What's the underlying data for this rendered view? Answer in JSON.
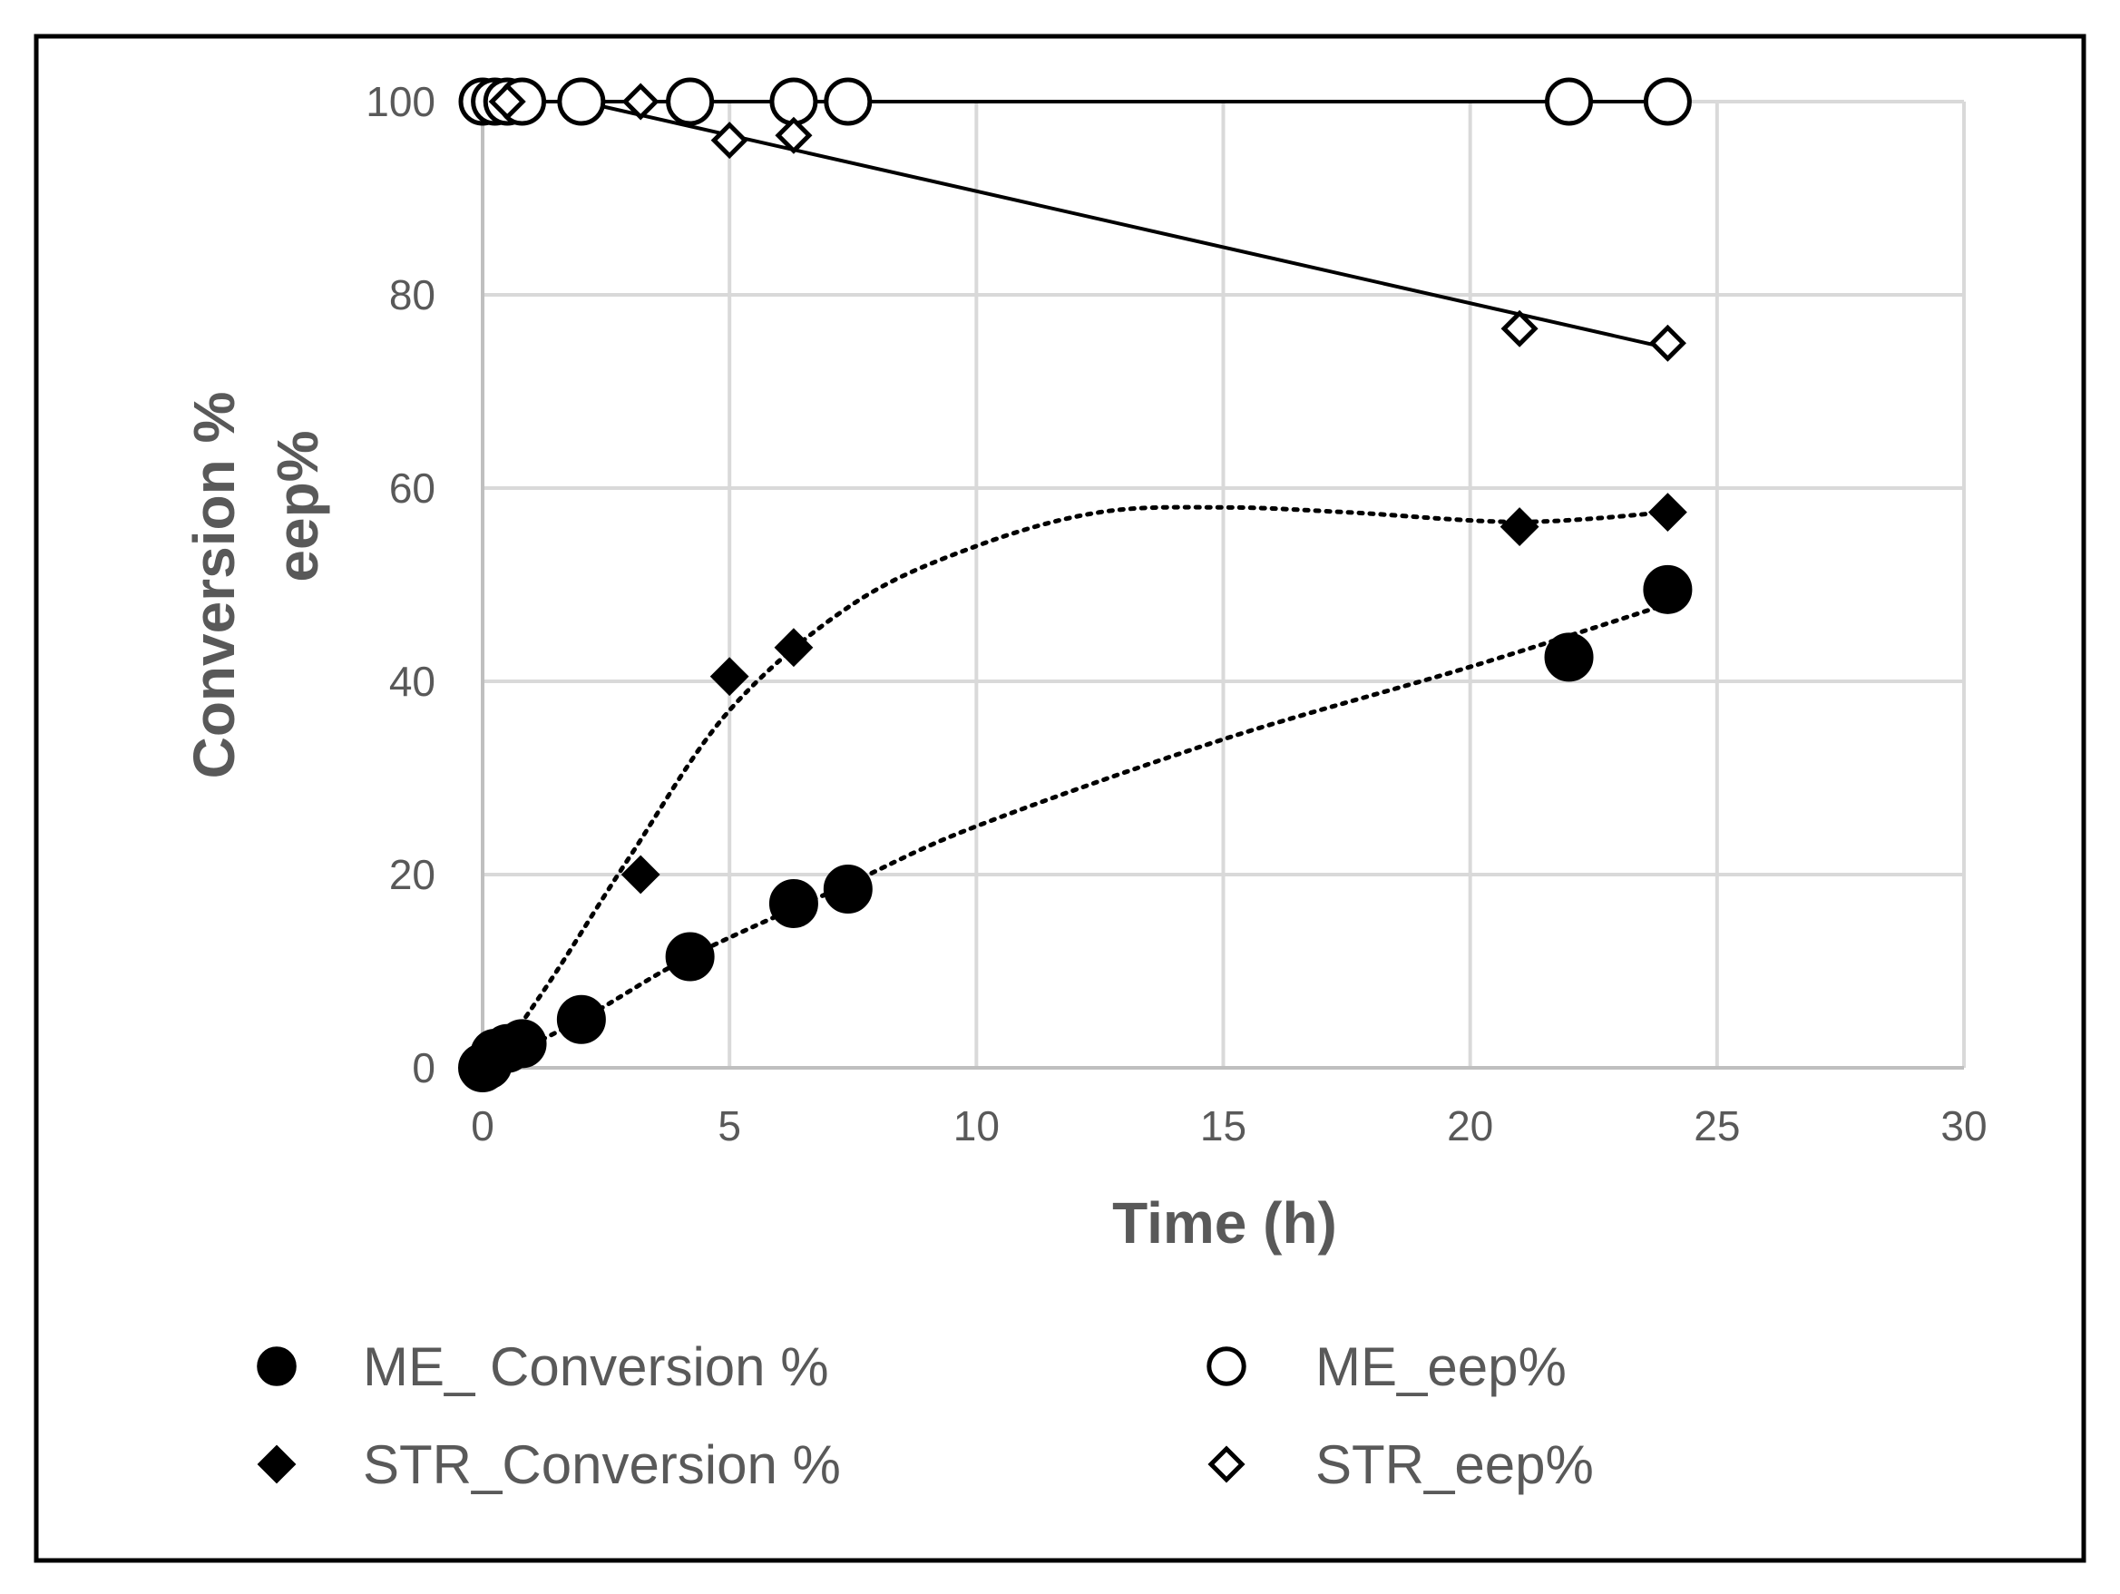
{
  "chart_data": {
    "type": "scatter",
    "title": "",
    "xlabel": "Time (h)",
    "ylabel_lines": [
      "Conversion %",
      "eep%"
    ],
    "xlim": [
      0,
      30
    ],
    "ylim": [
      0,
      100
    ],
    "xticks": [
      0,
      5,
      10,
      15,
      20,
      25,
      30
    ],
    "yticks": [
      0,
      20,
      40,
      60,
      80,
      100
    ],
    "grid": true,
    "legend_position": "bottom",
    "series": [
      {
        "name": "ME_ Conversion %",
        "marker": "circle",
        "filled": true,
        "trendline": "dotted",
        "points": [
          [
            0,
            0
          ],
          [
            0.1,
            0.3
          ],
          [
            0.25,
            1.5
          ],
          [
            0.5,
            2.0
          ],
          [
            0.8,
            2.5
          ],
          [
            2,
            5
          ],
          [
            4.2,
            11.5
          ],
          [
            6.3,
            17
          ],
          [
            7.4,
            18.5
          ],
          [
            22,
            42.5
          ],
          [
            24,
            49.5
          ]
        ],
        "trend_points": [
          [
            0,
            0
          ],
          [
            2,
            5
          ],
          [
            4.2,
            11.5
          ],
          [
            7.4,
            19
          ],
          [
            10,
            25
          ],
          [
            15,
            34
          ],
          [
            20,
            41.5
          ],
          [
            24,
            48
          ]
        ]
      },
      {
        "name": "ME_eep%",
        "marker": "circle",
        "filled": false,
        "trendline": "solid",
        "points": [
          [
            0,
            100
          ],
          [
            0.25,
            100
          ],
          [
            0.5,
            100
          ],
          [
            0.8,
            100
          ],
          [
            2,
            100
          ],
          [
            4.2,
            100
          ],
          [
            6.3,
            100
          ],
          [
            7.4,
            100
          ],
          [
            22,
            100
          ],
          [
            24,
            100
          ]
        ],
        "trend_points": [
          [
            0,
            100
          ],
          [
            24,
            100
          ]
        ]
      },
      {
        "name": "STR_Conversion %",
        "marker": "diamond",
        "filled": true,
        "trendline": "dotted",
        "points": [
          [
            0.5,
            2.5
          ],
          [
            3.2,
            20
          ],
          [
            5,
            40.5
          ],
          [
            6.3,
            43.5
          ],
          [
            21,
            56
          ],
          [
            24,
            57.5
          ]
        ],
        "trend_points": [
          [
            0.5,
            2.5
          ],
          [
            1.5,
            10
          ],
          [
            3,
            22
          ],
          [
            5,
            37
          ],
          [
            7.5,
            48
          ],
          [
            10,
            54
          ],
          [
            12.5,
            57.5
          ],
          [
            15,
            58
          ],
          [
            17.5,
            57.5
          ],
          [
            21,
            56.5
          ],
          [
            24,
            57.5
          ]
        ]
      },
      {
        "name": "STR_eep%",
        "marker": "diamond",
        "filled": false,
        "trendline": "solid",
        "points": [
          [
            0.5,
            100
          ],
          [
            3.2,
            100
          ],
          [
            5,
            96
          ],
          [
            6.3,
            96.5
          ],
          [
            21,
            76.5
          ],
          [
            24,
            75
          ]
        ],
        "trend_points": [
          [
            2,
            100
          ],
          [
            24,
            74.5
          ]
        ]
      }
    ]
  }
}
